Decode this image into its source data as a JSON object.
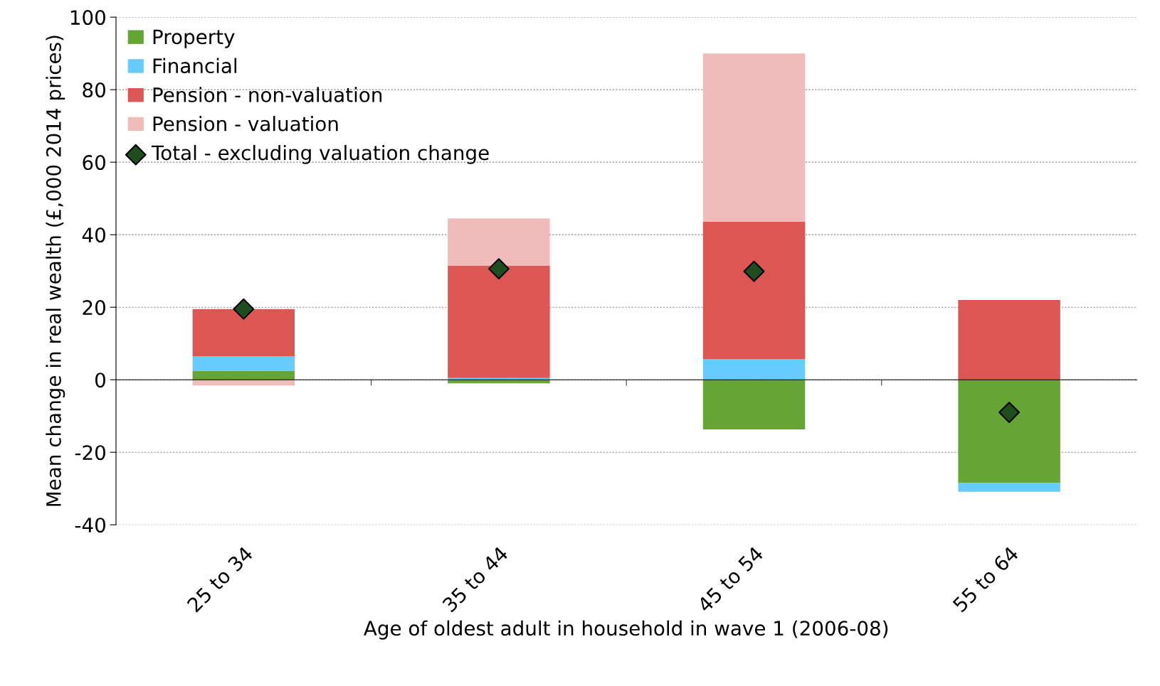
{
  "chart_data": {
    "type": "bar",
    "stacked": true,
    "xlabel": "Age of oldest adult in household in wave 1 (2006-08)",
    "ylabel": "Mean change in real wealth (£,000 2014 prices)",
    "categories": [
      "25 to 34",
      "35 to 44",
      "45 to 54",
      "55 to 64"
    ],
    "series": [
      {
        "name": "Property",
        "color": "#65a535",
        "values": [
          2.5,
          -1,
          -13.7,
          -28.5
        ]
      },
      {
        "name": "Financial",
        "color": "#66ccff",
        "values": [
          4,
          0.5,
          5.7,
          -2.4
        ]
      },
      {
        "name": "Pension - non-valuation",
        "color": "#dc5753",
        "values": [
          13,
          31,
          37.9,
          22
        ]
      },
      {
        "name": "Pension - valuation",
        "color": "#efbbbb",
        "values": [
          -1.6,
          13,
          46.4,
          0
        ]
      },
      {
        "name": "Total - excluding valuation change",
        "type": "scatter",
        "marker": "diamond",
        "color": "#1f4d1f",
        "x": [
          "25 to 34",
          "35 to 44",
          "45 to 54",
          "55 to 64"
        ],
        "values": [
          19.5,
          30.6,
          29.9,
          -9
        ]
      }
    ],
    "ylim": [
      -40,
      100
    ],
    "yticks": [
      -40,
      -20,
      0,
      20,
      40,
      60,
      80,
      100
    ],
    "grid": "y",
    "legend": "top left"
  }
}
